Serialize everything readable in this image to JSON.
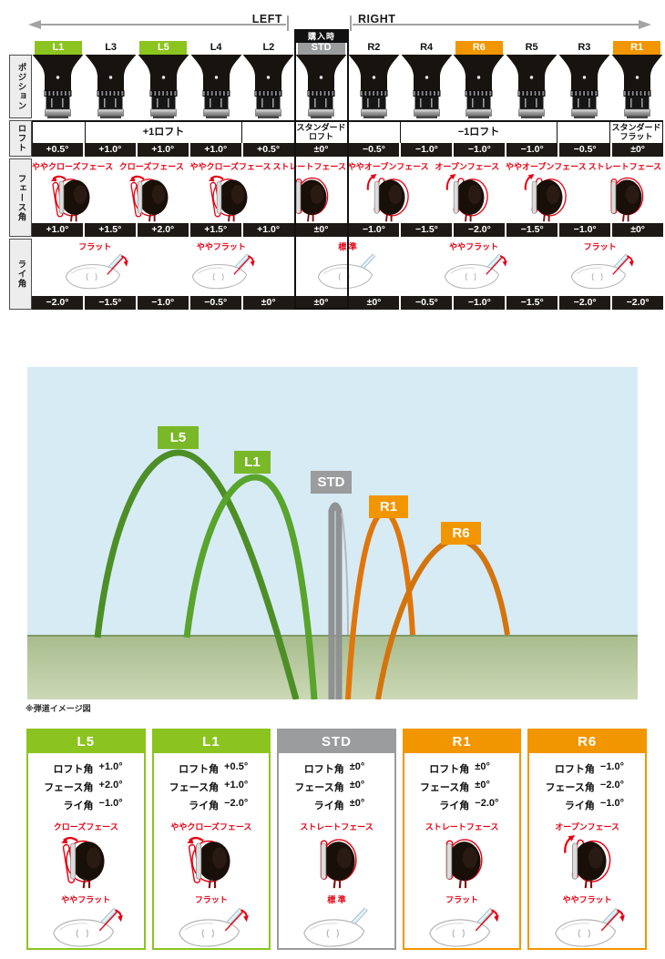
{
  "header": {
    "left_label": "LEFT",
    "right_label": "RIGHT",
    "purchase_label": "購入時"
  },
  "colors": {
    "lime": "#8cc41f",
    "orange": "#f29600",
    "gray_box": "#9b9c9e",
    "black_bar": "#1d1a15",
    "red": "#e60012",
    "sky": "#d7ebf5",
    "ground_top": "#a9bd8f",
    "ground_bottom": "#ccd8b6"
  },
  "table": {
    "row_labels": {
      "position": "ポジション",
      "loft": "ロフト",
      "face": "フェース角",
      "lie": "ライ角"
    },
    "columns": [
      {
        "label": "L1",
        "type": "green",
        "loft": "+0.5°",
        "face": "+1.0°",
        "lie": "−2.0°"
      },
      {
        "label": "L3",
        "type": "plain",
        "loft": "+1.0°",
        "face": "+1.5°",
        "lie": "−1.5°"
      },
      {
        "label": "L5",
        "type": "green",
        "loft": "+1.0°",
        "face": "+2.0°",
        "lie": "−1.0°"
      },
      {
        "label": "L4",
        "type": "plain",
        "loft": "+1.0°",
        "face": "+1.5°",
        "lie": "−0.5°"
      },
      {
        "label": "L2",
        "type": "plain",
        "loft": "+0.5°",
        "face": "+1.0°",
        "lie": "±0°"
      },
      {
        "label": "STD",
        "type": "std",
        "loft": "±0°",
        "face": "±0°",
        "lie": "±0°"
      },
      {
        "label": "R2",
        "type": "plain",
        "loft": "−0.5°",
        "face": "−1.0°",
        "lie": "±0°"
      },
      {
        "label": "R4",
        "type": "plain",
        "loft": "−1.0°",
        "face": "−1.5°",
        "lie": "−0.5°"
      },
      {
        "label": "R6",
        "type": "orange",
        "loft": "−1.0°",
        "face": "−2.0°",
        "lie": "−1.0°"
      },
      {
        "label": "R5",
        "type": "plain",
        "loft": "−1.0°",
        "face": "−1.5°",
        "lie": "−1.5°"
      },
      {
        "label": "R3",
        "type": "plain",
        "loft": "−0.5°",
        "face": "−1.0°",
        "lie": "−2.0°"
      },
      {
        "label": "R1",
        "type": "orange",
        "loft": "±0°",
        "face": "±0°",
        "lie": "−2.0°"
      }
    ],
    "loft_groups": [
      {
        "label": "",
        "span": 1
      },
      {
        "label": "+1ロフト",
        "span": 3
      },
      {
        "label": "",
        "span": 1
      },
      {
        "label": "スタンダードロフト",
        "span": 1
      },
      {
        "label": "",
        "span": 1
      },
      {
        "label": "−1ロフト",
        "span": 3
      },
      {
        "label": "",
        "span": 1
      },
      {
        "label": "スタンダードフラット",
        "span": 1
      }
    ],
    "face_items": [
      {
        "label": "ややクローズフェース",
        "dir": "close"
      },
      {
        "label": "クローズフェース",
        "dir": "close"
      },
      {
        "label": "ややクローズフェース",
        "dir": "close"
      },
      {
        "label": "ストレートフェース",
        "dir": "straight"
      },
      {
        "label": "ややオープンフェース",
        "dir": "open"
      },
      {
        "label": "オープンフェース",
        "dir": "open"
      },
      {
        "label": "ややオープンフェース",
        "dir": "open"
      },
      {
        "label": "ストレートフェース",
        "dir": "straight"
      }
    ],
    "lie_items": [
      {
        "label": "フラット",
        "arrow": true
      },
      {
        "label": "ややフラット",
        "arrow": true
      },
      {
        "label": "標 準",
        "arrow": false
      },
      {
        "label": "ややフラット",
        "arrow": true
      },
      {
        "label": "フラット",
        "arrow": true
      }
    ]
  },
  "chart": {
    "note": "※弾道イメージ図",
    "series": [
      {
        "label": "L5",
        "box_color": "#79b829",
        "curve_color": "#4d8f26",
        "apex_rank": 1,
        "side": "left"
      },
      {
        "label": "L1",
        "box_color": "#79b829",
        "curve_color": "#58a42c",
        "apex_rank": 2,
        "side": "left"
      },
      {
        "label": "STD",
        "box_color": "#9b9c9e",
        "curve_color": "#8f9193",
        "apex_rank": 3,
        "side": "center"
      },
      {
        "label": "R1",
        "box_color": "#f29600",
        "curve_color": "#e0760b",
        "apex_rank": 4,
        "side": "right"
      },
      {
        "label": "R6",
        "box_color": "#f29600",
        "curve_color": "#d4740c",
        "apex_rank": 5,
        "side": "right"
      }
    ]
  },
  "card_spec_labels": [
    "ロフト角",
    "フェース角",
    "ライ角"
  ],
  "cards": [
    {
      "title": "L5",
      "type": "green",
      "loft": "+1.0°",
      "face": "+2.0°",
      "lie": "−1.0°",
      "face_label": "クローズフェース",
      "face_dir": "close",
      "lie_label": "ややフラット",
      "lie_arrow": true
    },
    {
      "title": "L1",
      "type": "green",
      "loft": "+0.5°",
      "face": "+1.0°",
      "lie": "−2.0°",
      "face_label": "ややクローズフェース",
      "face_dir": "close",
      "lie_label": "フラット",
      "lie_arrow": true
    },
    {
      "title": "STD",
      "type": "gray",
      "loft": "±0°",
      "face": "±0°",
      "lie": "±0°",
      "face_label": "ストレートフェース",
      "face_dir": "straight",
      "lie_label": "標 準",
      "lie_arrow": false
    },
    {
      "title": "R1",
      "type": "orange",
      "loft": "±0°",
      "face": "±0°",
      "lie": "−2.0°",
      "face_label": "ストレートフェース",
      "face_dir": "straight",
      "lie_label": "フラット",
      "lie_arrow": true
    },
    {
      "title": "R6",
      "type": "orange",
      "loft": "−1.0°",
      "face": "−2.0°",
      "lie": "−1.0°",
      "face_label": "オープンフェース",
      "face_dir": "open",
      "lie_label": "ややフラット",
      "lie_arrow": true
    }
  ]
}
